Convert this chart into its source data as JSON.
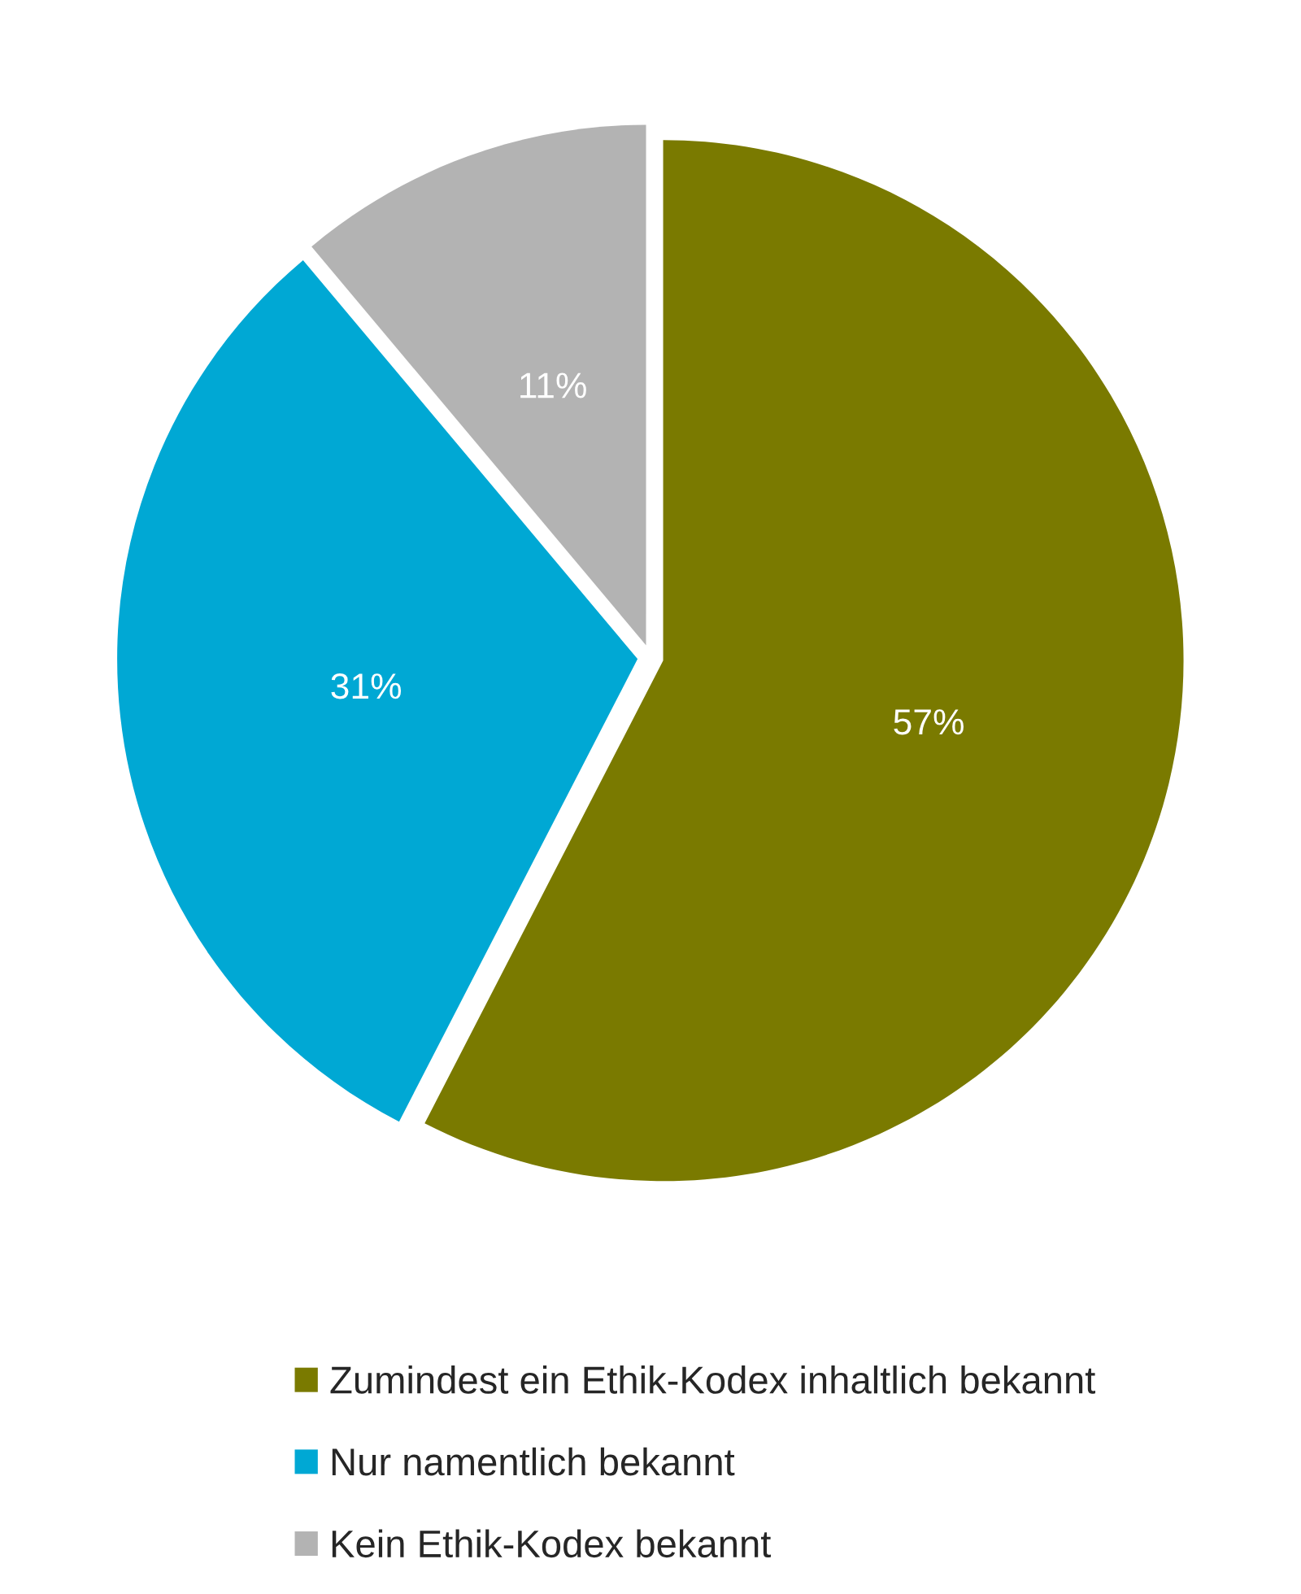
{
  "chart_data": {
    "type": "pie",
    "categories": [
      "Zumindest ein Ethik-Kodex inhaltlich bekannt",
      "Nur namentlich bekannt",
      "Kein Ethik-Kodex bekannt"
    ],
    "values": [
      57,
      31,
      11
    ],
    "value_labels": [
      "57%",
      "31%",
      "11%"
    ],
    "colors": [
      "#7a7a00",
      "#00a8d4",
      "#b3b3b3"
    ],
    "legend": "bottom"
  }
}
